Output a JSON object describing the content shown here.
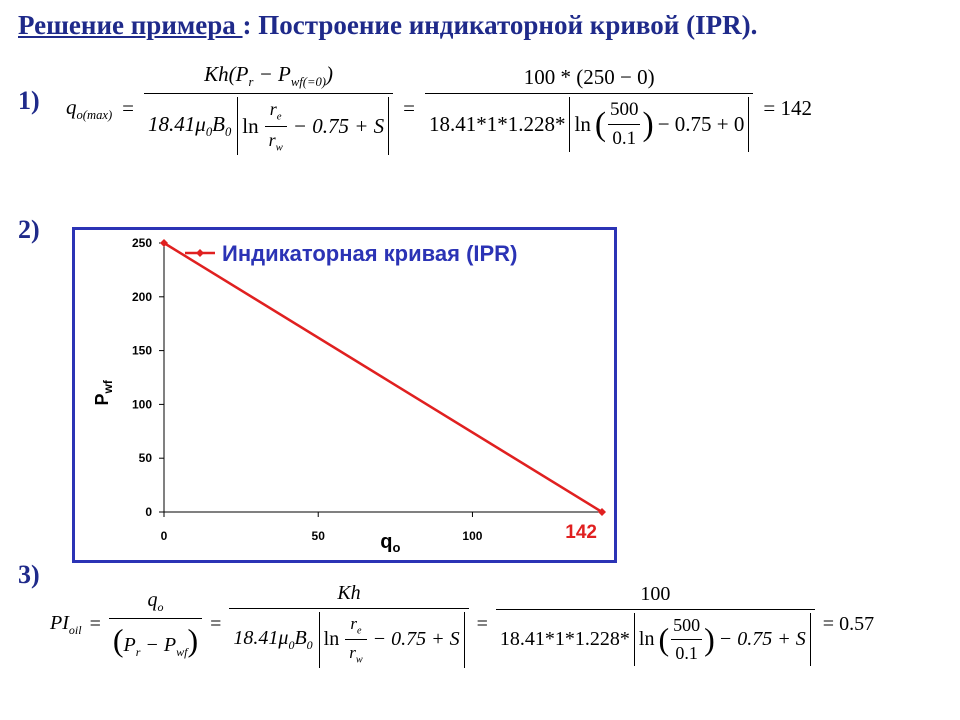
{
  "title": {
    "underlined": "Решение примера ",
    "rest": ": Построение индикаторной кривой (IPR)."
  },
  "steps": {
    "s1": "1)",
    "s2": "2)",
    "s3": "3)"
  },
  "eq1": {
    "lhs_q": "q",
    "lhs_sub": "o(max)",
    "num": "Kh(P",
    "num_pr": "r",
    "num_minus": " − P",
    "num_wf": "wf(=0)",
    "num_close": ")",
    "den_a": "18.41μ",
    "den_mu_sub": "0",
    "den_b": "B",
    "den_b_sub": "0",
    "den_ln": "ln",
    "re": "r",
    "re_sub": "e",
    "rw": "r",
    "rw_sub": "w",
    "den_tail": "− 0.75 + S",
    "eq": "=",
    "num2": "100 * (250 − 0)",
    "den2_a": "18.41*1*1.228*",
    "den2_ln": "ln",
    "r500": "500",
    "r01": "0.1",
    "den2_tail": "− 0.75 + 0",
    "result": "= 142"
  },
  "chart_data": {
    "type": "line",
    "title": "",
    "xlabel": "q",
    "xlabel_sub": "o",
    "ylabel": "P",
    "ylabel_sub": "wf",
    "xlim": [
      0,
      142
    ],
    "ylim": [
      0,
      250
    ],
    "x_ticks": [
      "0",
      "50",
      "100"
    ],
    "x_tick_values": [
      0,
      50,
      100
    ],
    "y_ticks": [
      "0",
      "50",
      "100",
      "150",
      "200",
      "250"
    ],
    "y_tick_values": [
      0,
      50,
      100,
      150,
      200,
      250
    ],
    "series": [
      {
        "name": "Индикаторная кривая (IPR)",
        "color": "#e02020",
        "x": [
          0,
          142
        ],
        "y": [
          250,
          0
        ]
      }
    ],
    "annotation": "142",
    "legend": "top-right",
    "grid": false,
    "frame_color": "#2b33b5"
  },
  "eq3": {
    "pi": "PI",
    "pi_sub": "oil",
    "eq": "=",
    "q": "q",
    "q_sub": "o",
    "pr": "P",
    "pr_sub": "r",
    "minus": " − ",
    "pwf": "P",
    "pwf_sub": "wf",
    "kh": "Kh",
    "den_a": "18.41μ",
    "den_mu_sub": "0",
    "den_b": "B",
    "den_b_sub": "0",
    "den_ln": "ln",
    "re": "r",
    "re_sub": "e",
    "rw": "r",
    "rw_sub": "w",
    "den_tail": "− 0.75 + S",
    "num2": "100",
    "den2_a": "18.41*1*1.228*",
    "den2_ln": "ln",
    "r500": "500",
    "r01": "0.1",
    "den2_tail": "− 0.75 + S",
    "result": "= 0.57"
  }
}
